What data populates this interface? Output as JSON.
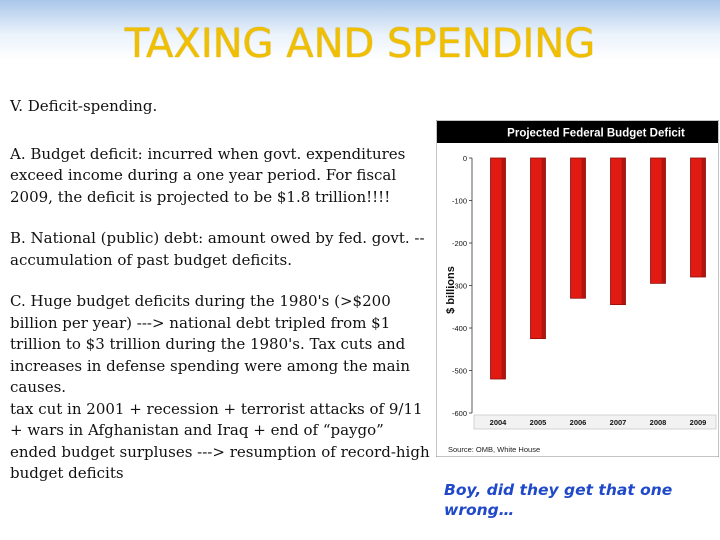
{
  "slide": {
    "title": "TAXING AND SPENDING",
    "heading": "V.  Deficit-spending.",
    "para_a": "A. Budget deficit:  incurred when govt. expenditures exceed income during a one year period.  For fiscal 2009, the deficit is projected to be $1.8 trillion!!!!",
    "para_b": "B. National (public) debt:  amount owed by fed. govt. -- accumulation of past budget deficits.",
    "para_c": "C. Huge budget deficits during the 1980's (>$200 billion per year) ---> national debt tripled from $1 trillion to $3 trillion during the 1980's.  Tax cuts and increases in defense spending  were among the main causes.",
    "para_d": "tax cut in 2001 + recession + terrorist attacks of 9/11 + wars in Afghanistan and Iraq + end of “paygo” ended budget surpluses ---> resumption of record-high budget deficits",
    "caption": "Boy, did they get that one wrong…"
  },
  "chart_data": {
    "type": "bar",
    "title": "Projected Federal Budget Deficit",
    "ylabel": "$ billions",
    "source": "Source: OMB, White House",
    "categories": [
      "2004",
      "2005",
      "2006",
      "2007",
      "2008",
      "2009"
    ],
    "values": [
      -520,
      -425,
      -330,
      -345,
      -295,
      -280
    ],
    "ylim": [
      -600,
      0
    ],
    "yticks": [
      0,
      -100,
      -200,
      -300,
      -400,
      -500,
      -600
    ],
    "ytick_labels": [
      "0",
      "-100",
      "-200",
      "-300",
      "-400",
      "-500",
      "-600"
    ],
    "grid": false,
    "colors": {
      "bar": "#e11b14",
      "bar_dark": "#8f0e0a",
      "header_bg": "#000000",
      "header_text": "#ffffff",
      "plot_bg": "#ffffff"
    }
  }
}
